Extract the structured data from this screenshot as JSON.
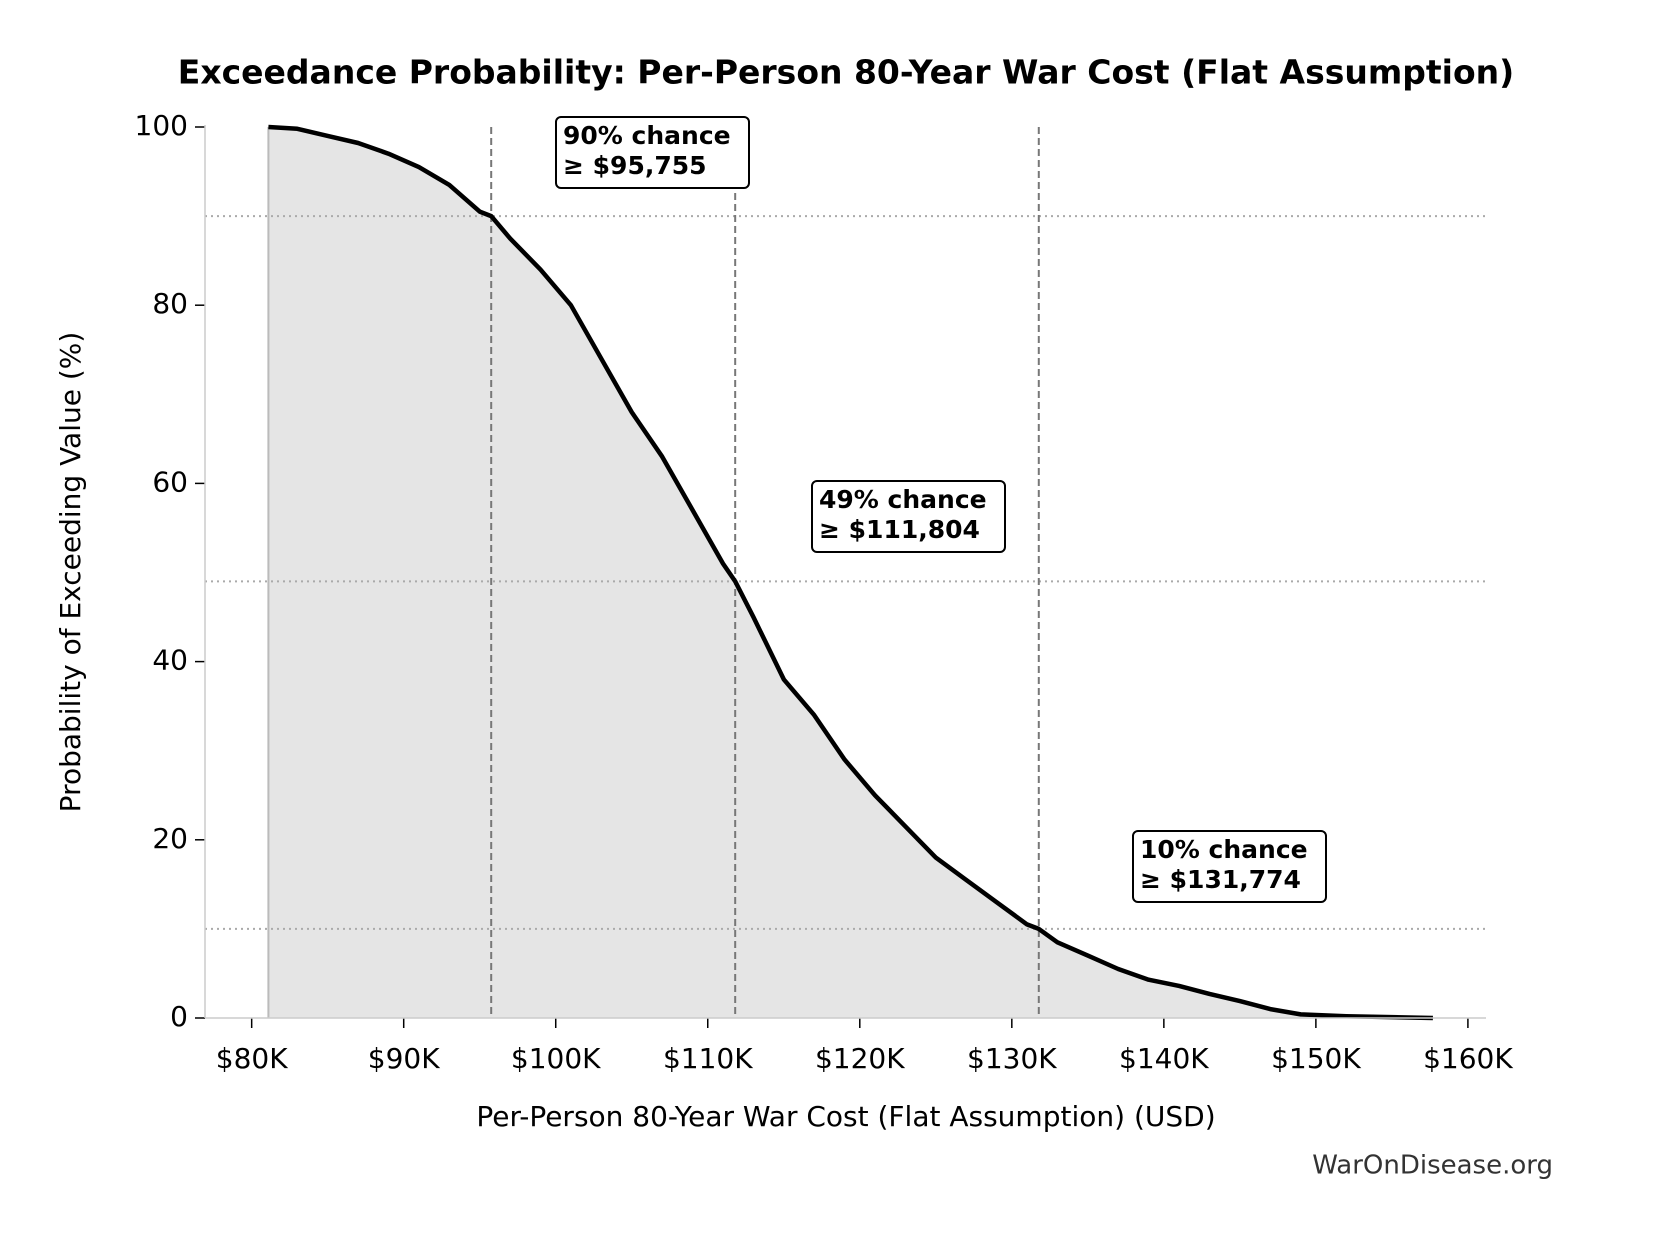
{
  "chart_data": {
    "type": "area-line",
    "title": "Exceedance Probability: Per-Person 80-Year War Cost (Flat Assumption)",
    "x_label": "Per-Person 80-Year War Cost (Flat Assumption) (USD)",
    "y_label": "Probability of Exceeding Value (%)",
    "source": "WarOnDisease.org",
    "color": "#000000",
    "fill": "#e5e5e5",
    "x": [
      81100,
      83000,
      85000,
      87000,
      89000,
      91000,
      93000,
      95000,
      95755,
      97000,
      99000,
      101000,
      103000,
      105000,
      107000,
      109000,
      111000,
      111804,
      113000,
      115000,
      117000,
      119000,
      121000,
      123000,
      125000,
      127000,
      129000,
      131000,
      131774,
      133000,
      135000,
      137000,
      139000,
      141000,
      143000,
      145000,
      147000,
      149000,
      152000,
      155000,
      157700
    ],
    "values": [
      100,
      99.8,
      99,
      98.2,
      97,
      95.5,
      93.5,
      90.5,
      90,
      87.5,
      84,
      80,
      74,
      68,
      63,
      57,
      51,
      49,
      45,
      38,
      34,
      29,
      25,
      21.5,
      18,
      15.5,
      13,
      10.5,
      10,
      8.5,
      7,
      5.5,
      4.3,
      3.6,
      2.7,
      1.9,
      1,
      0.4,
      0.2,
      0.1,
      0
    ],
    "xlim": [
      76930,
      161190
    ],
    "ylim": [
      0,
      100
    ],
    "xticks": [
      {
        "value": 80000,
        "label": "$80K"
      },
      {
        "value": 90000,
        "label": "$90K"
      },
      {
        "value": 100000,
        "label": "$100K"
      },
      {
        "value": 110000,
        "label": "$110K"
      },
      {
        "value": 120000,
        "label": "$120K"
      },
      {
        "value": 130000,
        "label": "$130K"
      },
      {
        "value": 140000,
        "label": "$140K"
      },
      {
        "value": 150000,
        "label": "$150K"
      },
      {
        "value": 160000,
        "label": "$160K"
      }
    ],
    "yticks": [
      0,
      20,
      40,
      60,
      80,
      100
    ],
    "annotations": [
      {
        "lines": [
          "90% chance",
          "≥ $95,755"
        ],
        "x": 95755,
        "y": 90
      },
      {
        "lines": [
          "49% chance",
          "≥ $111,804"
        ],
        "x": 111804,
        "y": 49
      },
      {
        "lines": [
          "10% chance",
          "≥ $131,774"
        ],
        "x": 131774,
        "y": 10
      }
    ]
  }
}
